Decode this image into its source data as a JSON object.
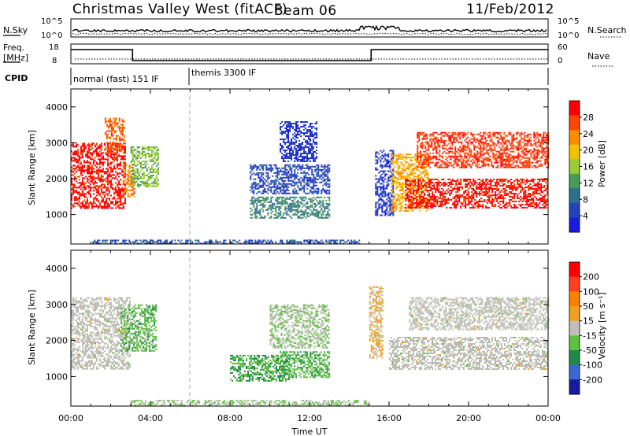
{
  "header": {
    "title": "Christmas Valley West (fitACF)",
    "beam": "Beam 06",
    "date": "11/Feb/2012"
  },
  "panels": {
    "nsky_label": "N.Sky",
    "nsky_ticks": [
      "10^5",
      "10^0"
    ],
    "nsearch_label": "N.Search",
    "nsearch_ticks": [
      "10^5",
      "10^0"
    ],
    "freq_label_1": "Freq.",
    "freq_label_2": "[MHz]",
    "freq_ticks": [
      "18",
      "8"
    ],
    "nave_label": "Nave",
    "nave_ticks": [
      "60",
      "0"
    ],
    "cpid_label": "CPID",
    "cpid_1": "normal (fast) 151 IF",
    "cpid_2": "themis 3300 IF"
  },
  "colors": {
    "power_scale": [
      "#1a1adf",
      "#2244bb",
      "#2e6e8e",
      "#4a9a5a",
      "#9acd32",
      "#f2c200",
      "#ff8c00",
      "#ff4500",
      "#ff0000"
    ],
    "velocity_scale": [
      "#1a1aa0",
      "#3a6acd",
      "#1f8a4a",
      "#5fbf3f",
      "#c0c0b8",
      "#f0a020",
      "#ff8000",
      "#ff4020",
      "#ff0000"
    ],
    "ground_scatter": "#bdbdb5"
  },
  "chart_data": [
    {
      "type": "heatmap",
      "title": "",
      "xlabel": "Time UT",
      "ylabel": "Slant Range [km]",
      "xlim": [
        "00:00",
        "24:00"
      ],
      "x_ticks": [
        "00:00",
        "04:00",
        "08:00",
        "12:00",
        "16:00",
        "20:00",
        "00:00"
      ],
      "ylim": [
        180,
        4500
      ],
      "y_ticks": [
        1000,
        2000,
        3000,
        4000
      ],
      "colorbar_label": "Power [dB]",
      "colorbar_ticks": [
        "28",
        "24",
        "20",
        "16",
        "12",
        "8",
        "4"
      ],
      "colorbar_range": [
        0,
        30
      ],
      "patches": [
        {
          "t": [
            0.0,
            2.7
          ],
          "r": [
            1200,
            3000
          ],
          "value": 28
        },
        {
          "t": [
            1.7,
            2.7
          ],
          "r": [
            2700,
            3700
          ],
          "value": 24
        },
        {
          "t": [
            2.6,
            3.2
          ],
          "r": [
            1500,
            2400
          ],
          "value": 22
        },
        {
          "t": [
            3.0,
            4.4
          ],
          "r": [
            1800,
            2900
          ],
          "value": 14
        },
        {
          "t": [
            9.0,
            13.0
          ],
          "r": [
            900,
            1500
          ],
          "value": 10
        },
        {
          "t": [
            9.0,
            13.0
          ],
          "r": [
            1600,
            2400
          ],
          "value": 5
        },
        {
          "t": [
            10.5,
            12.4
          ],
          "r": [
            2500,
            3600
          ],
          "value": 4
        },
        {
          "t": [
            15.3,
            16.2
          ],
          "r": [
            1000,
            2800
          ],
          "value": 4
        },
        {
          "t": [
            16.1,
            18.0
          ],
          "r": [
            1100,
            2700
          ],
          "value": 20
        },
        {
          "t": [
            16.8,
            24.0
          ],
          "r": [
            1200,
            2000
          ],
          "value": 28
        },
        {
          "t": [
            17.4,
            24.0
          ],
          "r": [
            2300,
            3300
          ],
          "value": 26
        },
        {
          "t": [
            1.0,
            14.5
          ],
          "r": [
            180,
            300
          ],
          "value": 6
        }
      ]
    },
    {
      "type": "heatmap",
      "title": "",
      "xlabel": "Time UT",
      "ylabel": "Slant Range [km]",
      "xlim": [
        "00:00",
        "24:00"
      ],
      "x_ticks": [
        "00:00",
        "04:00",
        "08:00",
        "12:00",
        "16:00",
        "20:00",
        "00:00"
      ],
      "ylim": [
        180,
        4500
      ],
      "y_ticks": [
        1000,
        2000,
        3000,
        4000
      ],
      "colorbar_label": "Velocity [m s⁻¹]",
      "colorbar_ticks": [
        "200",
        "100",
        "50",
        "15",
        "-15",
        "-50",
        "-100",
        "-200"
      ],
      "colorbar_range": [
        -250,
        250
      ],
      "patches": [
        {
          "t": [
            0.0,
            3.0
          ],
          "r": [
            1200,
            3200
          ],
          "value": 0
        },
        {
          "t": [
            2.5,
            4.3
          ],
          "r": [
            1700,
            3000
          ],
          "value": -60
        },
        {
          "t": [
            8.0,
            11.0
          ],
          "r": [
            900,
            1600
          ],
          "value": -80
        },
        {
          "t": [
            10.5,
            13.0
          ],
          "r": [
            1000,
            1700
          ],
          "value": -70
        },
        {
          "t": [
            10.0,
            13.0
          ],
          "r": [
            1800,
            3000
          ],
          "value": -20
        },
        {
          "t": [
            15.0,
            15.7
          ],
          "r": [
            1500,
            3500
          ],
          "value": 40
        },
        {
          "t": [
            16.0,
            24.0
          ],
          "r": [
            1200,
            2100
          ],
          "value": 0
        },
        {
          "t": [
            17.0,
            24.0
          ],
          "r": [
            2300,
            3200
          ],
          "value": 0
        },
        {
          "t": [
            3.0,
            15.0
          ],
          "r": [
            180,
            350
          ],
          "value": -30
        }
      ]
    }
  ],
  "timeline": {
    "freq": [
      {
        "t": [
          0,
          3.1
        ],
        "f": 16
      },
      {
        "t": [
          3.1,
          15.1
        ],
        "f": 9
      },
      {
        "t": [
          15.1,
          24
        ],
        "f": 16
      }
    ],
    "nave_level": 16,
    "cpid_change_hour": 6.2
  }
}
